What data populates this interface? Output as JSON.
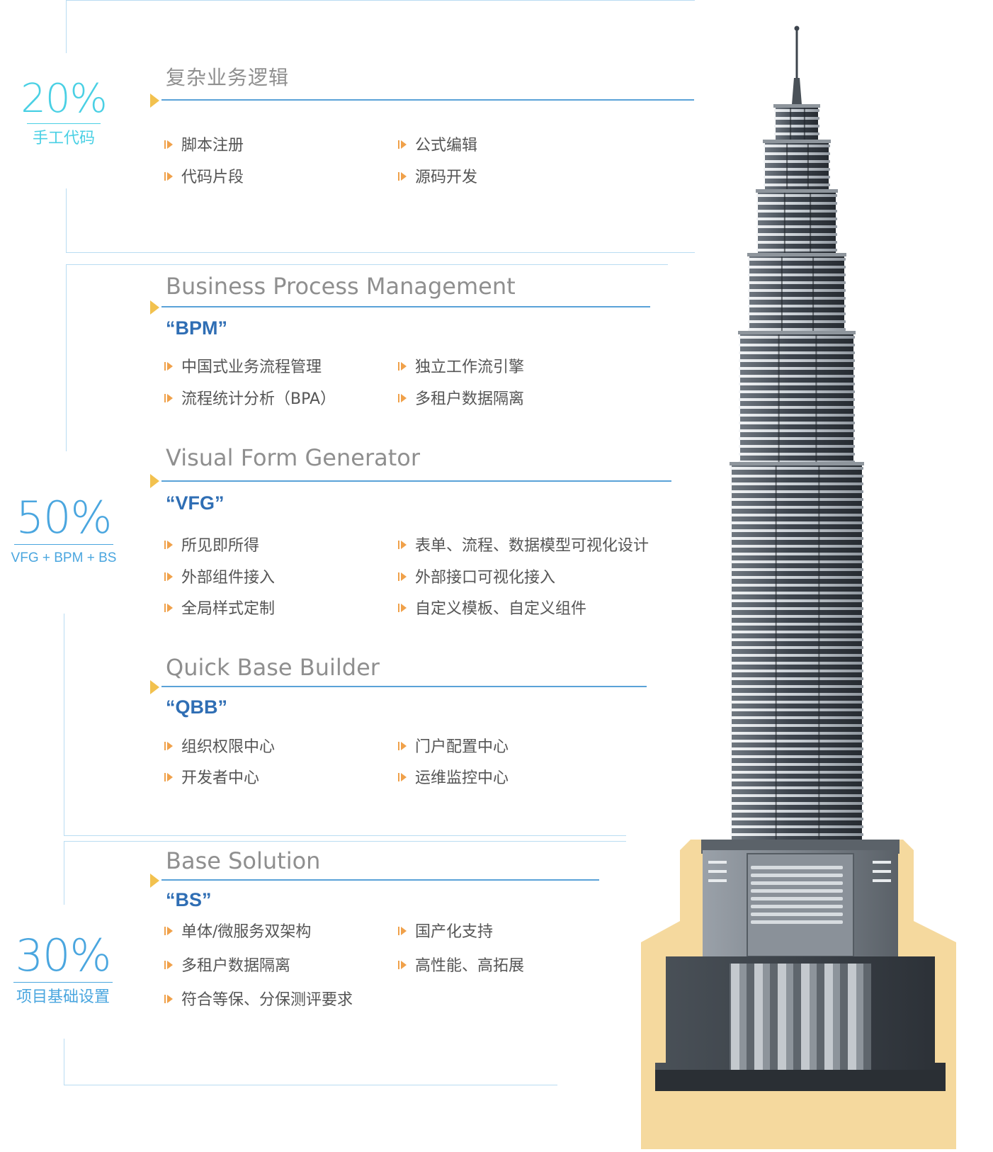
{
  "colors": {
    "accent_cyan": "#4ad0e4",
    "accent_blue": "#4aa6df",
    "heading_gray": "#8f8f8f",
    "abbr_blue": "#2f6eb4",
    "bullet_orange": "#f0a14a",
    "marker_yellow": "#f2c14e",
    "base_sand": "#f5d99e"
  },
  "left": {
    "p20": {
      "value": "20%",
      "caption": "手工代码"
    },
    "p50": {
      "value": "50%",
      "caption": "VFG + BPM + BS"
    },
    "p30": {
      "value": "30%",
      "caption": "项目基础设置"
    }
  },
  "sections": {
    "manual": {
      "title": "复杂业务逻辑",
      "items": [
        "脚本注册",
        "公式编辑",
        "代码片段",
        "源码开发"
      ]
    },
    "bpm": {
      "title": "Business Process Management",
      "abbr": "“BPM”",
      "items": [
        "中国式业务流程管理",
        "独立工作流引擎",
        "流程统计分析（BPA）",
        "多租户数据隔离"
      ]
    },
    "vfg": {
      "title": "Visual Form Generator",
      "abbr": "“VFG”",
      "items": [
        "所见即所得",
        "表单、流程、数据模型可视化设计",
        "外部组件接入",
        "外部接口可视化接入",
        "全局样式定制",
        "自定义模板、自定义组件"
      ]
    },
    "qbb": {
      "title": "Quick Base Builder",
      "abbr": "“QBB”",
      "items": [
        "组织权限中心",
        "门户配置中心",
        "开发者中心",
        "运维监控中心"
      ]
    },
    "bs": {
      "title": "Base Solution",
      "abbr": "“BS”",
      "items": [
        "单体/微服务双架构",
        "国产化支持",
        "多租户数据隔离",
        "高性能、高拓展",
        "符合等保、分保测评要求"
      ]
    }
  },
  "illustration": {
    "icon": "skyscraper-icon"
  }
}
